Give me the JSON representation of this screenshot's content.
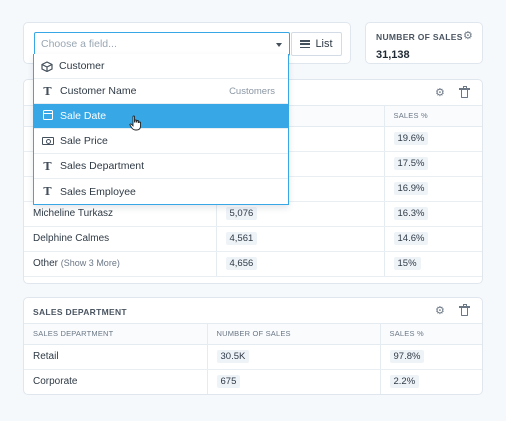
{
  "picker": {
    "placeholder": "Choose a field...",
    "list_label": "List"
  },
  "dropdown": {
    "items": [
      {
        "label": "Customer",
        "icon": "cube-icon",
        "hint": ""
      },
      {
        "label": "Customer Name",
        "icon": "text-type-icon",
        "hint": "Customers"
      },
      {
        "label": "Sale Date",
        "icon": "calendar-icon",
        "hint": "",
        "selected": true
      },
      {
        "label": "Sale Price",
        "icon": "money-icon",
        "hint": ""
      },
      {
        "label": "Sales Department",
        "icon": "text-type-icon",
        "hint": ""
      },
      {
        "label": "Sales Employee",
        "icon": "text-type-icon",
        "hint": ""
      }
    ],
    "text_icon_glyph": "T"
  },
  "kpi": {
    "title": "NUMBER OF SALES",
    "value": "31,138"
  },
  "table1": {
    "header_fragment": "S",
    "columns": [
      "",
      "",
      "SALES %"
    ],
    "rows": [
      {
        "name": "",
        "count": "",
        "pct": "19.6%"
      },
      {
        "name": "",
        "count": "",
        "pct": "17.5%"
      },
      {
        "name": "",
        "count": "",
        "pct": "16.9%"
      },
      {
        "name": "Micheline Turkasz",
        "count": "5,076",
        "pct": "16.3%"
      },
      {
        "name": "Delphine Calmes",
        "count": "4,561",
        "pct": "14.6%"
      },
      {
        "name": "Other",
        "more": "(Show 3 More)",
        "count": "4,656",
        "pct": "15%"
      }
    ]
  },
  "table2": {
    "title": "SALES DEPARTMENT",
    "columns": [
      "SALES DEPARTMENT",
      "NUMBER OF SALES",
      "SALES %"
    ],
    "rows": [
      {
        "name": "Retail",
        "count": "30.5K",
        "pct": "97.8%"
      },
      {
        "name": "Corporate",
        "count": "675",
        "pct": "2.2%"
      }
    ]
  },
  "colors": {
    "accent": "#37a7e6",
    "border": "#dfe6ee",
    "text": "#2f3a45"
  }
}
